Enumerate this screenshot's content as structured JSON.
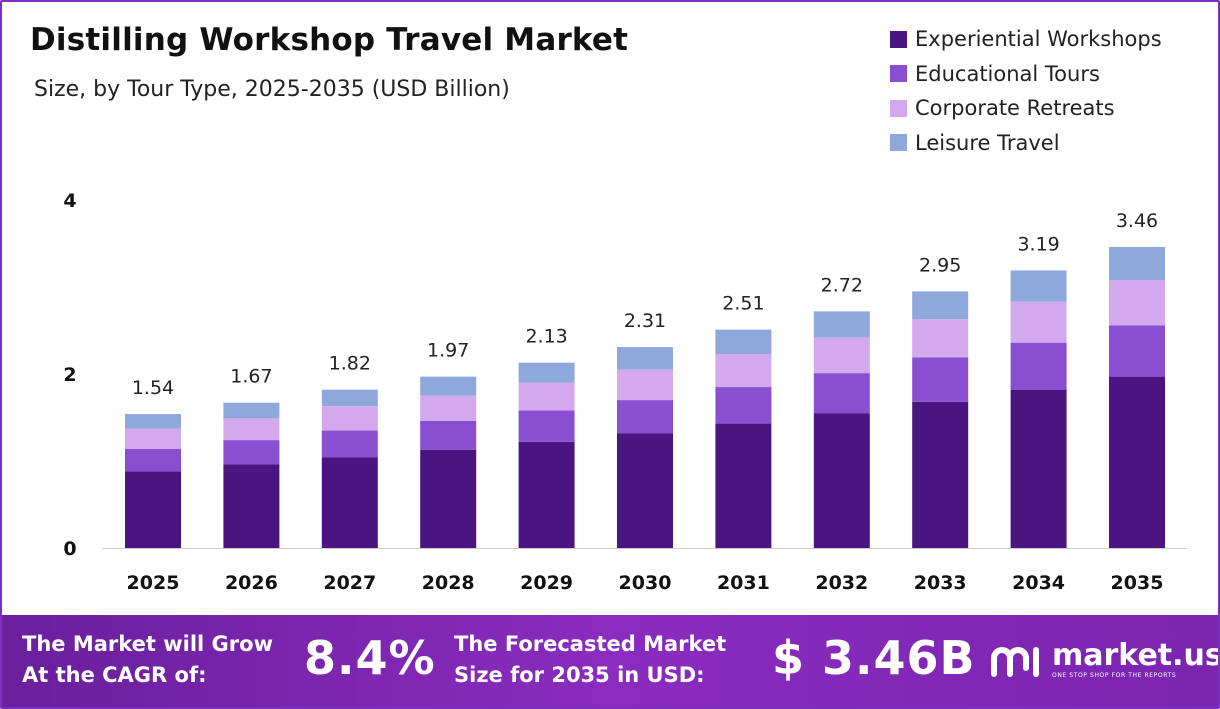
{
  "title": "Distilling  Workshop Travel Market",
  "subtitle": "Size, by Tour Type, 2025-2035 (USD Billion)",
  "legend": [
    {
      "label": "Experiential Workshops",
      "color": "#4b1581"
    },
    {
      "label": "Educational Tours",
      "color": "#8a4fd0"
    },
    {
      "label": "Corporate Retreats",
      "color": "#d4a8ec"
    },
    {
      "label": "Leisure Travel",
      "color": "#8fa8dc"
    }
  ],
  "chart_data": {
    "type": "bar",
    "stacked": true,
    "title": "Distilling  Workshop Travel Market",
    "subtitle": "Size, by Tour Type, 2025-2035 (USD Billion)",
    "categories": [
      "2025",
      "2026",
      "2027",
      "2028",
      "2029",
      "2030",
      "2031",
      "2032",
      "2033",
      "2034",
      "2035"
    ],
    "series": [
      {
        "name": "Experiential Workshops",
        "color": "#4b1581",
        "values": [
          0.88,
          0.96,
          1.04,
          1.13,
          1.22,
          1.32,
          1.43,
          1.55,
          1.68,
          1.82,
          1.97
        ]
      },
      {
        "name": "Educational Tours",
        "color": "#8a4fd0",
        "values": [
          0.26,
          0.28,
          0.31,
          0.33,
          0.36,
          0.38,
          0.42,
          0.46,
          0.51,
          0.54,
          0.59
        ]
      },
      {
        "name": "Corporate Retreats",
        "color": "#d4a8ec",
        "values": [
          0.23,
          0.25,
          0.28,
          0.29,
          0.32,
          0.35,
          0.38,
          0.41,
          0.44,
          0.47,
          0.52
        ]
      },
      {
        "name": "Leisure Travel",
        "color": "#8fa8dc",
        "values": [
          0.17,
          0.18,
          0.19,
          0.22,
          0.23,
          0.26,
          0.28,
          0.3,
          0.32,
          0.36,
          0.38
        ]
      }
    ],
    "totals": [
      "1.54",
      "1.67",
      "1.82",
      "1.97",
      "2.13",
      "2.31",
      "2.51",
      "2.72",
      "2.95",
      "3.19",
      "3.46"
    ],
    "yticks": [
      0,
      2,
      4
    ],
    "ylim": [
      0,
      4
    ],
    "xlabel": "",
    "ylabel": "",
    "grid": false,
    "legend_position": "top-right"
  },
  "footer": {
    "cagr_label_line1": "The Market will Grow",
    "cagr_label_line2": "At the CAGR of:",
    "cagr_value": "8.4%",
    "forecast_label_line1": "The Forecasted Market",
    "forecast_label_line2": "Size for 2035 in USD:",
    "forecast_value": "$ 3.46B",
    "brand_name": "market.us",
    "brand_tagline": "ONE STOP SHOP FOR THE REPORTS"
  }
}
